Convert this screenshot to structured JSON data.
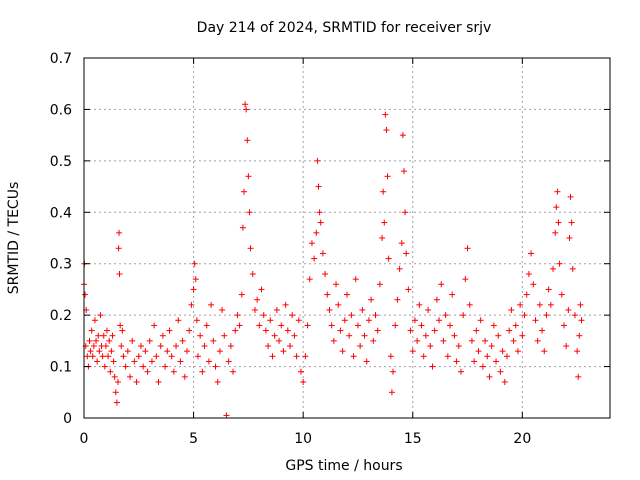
{
  "chart_data": {
    "type": "scatter",
    "title": "Day 214 of 2024, SRMTID for receiver srjv",
    "xlabel": "GPS time / hours",
    "ylabel": "SRMTID / TECUs",
    "xlim": [
      0,
      24
    ],
    "ylim": [
      0,
      0.7
    ],
    "xticks": [
      0,
      5,
      10,
      15,
      20
    ],
    "yticks": [
      0,
      0.1,
      0.2,
      0.3,
      0.4,
      0.5,
      0.6,
      0.7
    ],
    "xtick_labels": [
      "0",
      "5",
      "10",
      "15",
      "20"
    ],
    "ytick_labels": [
      "0",
      "0.1",
      "0.2",
      "0.3",
      "0.4",
      "0.5",
      "0.6",
      "0.7"
    ],
    "marker": "+",
    "marker_color": "#ff0000",
    "grid": true,
    "series": [
      {
        "name": "srjv",
        "points": [
          [
            0.0,
            0.26
          ],
          [
            0.02,
            0.3
          ],
          [
            0.05,
            0.24
          ],
          [
            0.08,
            0.14
          ],
          [
            0.1,
            0.21
          ],
          [
            0.15,
            0.12
          ],
          [
            0.2,
            0.1
          ],
          [
            0.25,
            0.15
          ],
          [
            0.3,
            0.13
          ],
          [
            0.35,
            0.17
          ],
          [
            0.4,
            0.12
          ],
          [
            0.45,
            0.14
          ],
          [
            0.5,
            0.19
          ],
          [
            0.55,
            0.15
          ],
          [
            0.6,
            0.11
          ],
          [
            0.65,
            0.16
          ],
          [
            0.7,
            0.13
          ],
          [
            0.75,
            0.2
          ],
          [
            0.8,
            0.14
          ],
          [
            0.85,
            0.12
          ],
          [
            0.9,
            0.16
          ],
          [
            0.95,
            0.1
          ],
          [
            1.0,
            0.14
          ],
          [
            1.05,
            0.17
          ],
          [
            1.1,
            0.12
          ],
          [
            1.15,
            0.15
          ],
          [
            1.2,
            0.09
          ],
          [
            1.25,
            0.13
          ],
          [
            1.3,
            0.16
          ],
          [
            1.35,
            0.11
          ],
          [
            1.4,
            0.08
          ],
          [
            1.45,
            0.05
          ],
          [
            1.5,
            0.03
          ],
          [
            1.55,
            0.07
          ],
          [
            1.58,
            0.33
          ],
          [
            1.6,
            0.36
          ],
          [
            1.62,
            0.28
          ],
          [
            1.65,
            0.18
          ],
          [
            1.7,
            0.14
          ],
          [
            1.75,
            0.17
          ],
          [
            1.8,
            0.12
          ],
          [
            1.9,
            0.1
          ],
          [
            2.0,
            0.13
          ],
          [
            2.1,
            0.08
          ],
          [
            2.2,
            0.15
          ],
          [
            2.3,
            0.11
          ],
          [
            2.4,
            0.07
          ],
          [
            2.5,
            0.12
          ],
          [
            2.6,
            0.14
          ],
          [
            2.7,
            0.1
          ],
          [
            2.8,
            0.13
          ],
          [
            2.9,
            0.09
          ],
          [
            3.0,
            0.15
          ],
          [
            3.1,
            0.11
          ],
          [
            3.2,
            0.18
          ],
          [
            3.3,
            0.12
          ],
          [
            3.4,
            0.07
          ],
          [
            3.5,
            0.14
          ],
          [
            3.6,
            0.16
          ],
          [
            3.7,
            0.1
          ],
          [
            3.8,
            0.13
          ],
          [
            3.9,
            0.17
          ],
          [
            4.0,
            0.12
          ],
          [
            4.1,
            0.09
          ],
          [
            4.2,
            0.14
          ],
          [
            4.3,
            0.19
          ],
          [
            4.4,
            0.11
          ],
          [
            4.5,
            0.15
          ],
          [
            4.6,
            0.08
          ],
          [
            4.7,
            0.13
          ],
          [
            4.8,
            0.17
          ],
          [
            4.9,
            0.22
          ],
          [
            5.0,
            0.25
          ],
          [
            5.05,
            0.3
          ],
          [
            5.1,
            0.27
          ],
          [
            5.15,
            0.19
          ],
          [
            5.2,
            0.12
          ],
          [
            5.3,
            0.16
          ],
          [
            5.4,
            0.09
          ],
          [
            5.5,
            0.14
          ],
          [
            5.6,
            0.18
          ],
          [
            5.7,
            0.11
          ],
          [
            5.8,
            0.22
          ],
          [
            5.9,
            0.15
          ],
          [
            6.0,
            0.1
          ],
          [
            6.1,
            0.07
          ],
          [
            6.2,
            0.13
          ],
          [
            6.3,
            0.21
          ],
          [
            6.4,
            0.16
          ],
          [
            6.5,
            0.005
          ],
          [
            6.6,
            0.11
          ],
          [
            6.7,
            0.14
          ],
          [
            6.8,
            0.09
          ],
          [
            6.9,
            0.17
          ],
          [
            7.0,
            0.2
          ],
          [
            7.1,
            0.18
          ],
          [
            7.2,
            0.24
          ],
          [
            7.25,
            0.37
          ],
          [
            7.3,
            0.44
          ],
          [
            7.35,
            0.61
          ],
          [
            7.4,
            0.6
          ],
          [
            7.45,
            0.54
          ],
          [
            7.5,
            0.47
          ],
          [
            7.55,
            0.4
          ],
          [
            7.6,
            0.33
          ],
          [
            7.7,
            0.28
          ],
          [
            7.8,
            0.21
          ],
          [
            7.9,
            0.23
          ],
          [
            8.0,
            0.18
          ],
          [
            8.1,
            0.25
          ],
          [
            8.2,
            0.2
          ],
          [
            8.3,
            0.17
          ],
          [
            8.4,
            0.14
          ],
          [
            8.5,
            0.19
          ],
          [
            8.6,
            0.12
          ],
          [
            8.7,
            0.16
          ],
          [
            8.8,
            0.21
          ],
          [
            8.9,
            0.15
          ],
          [
            9.0,
            0.18
          ],
          [
            9.1,
            0.13
          ],
          [
            9.2,
            0.22
          ],
          [
            9.3,
            0.17
          ],
          [
            9.4,
            0.14
          ],
          [
            9.5,
            0.2
          ],
          [
            9.6,
            0.16
          ],
          [
            9.7,
            0.12
          ],
          [
            9.8,
            0.19
          ],
          [
            9.9,
            0.09
          ],
          [
            10.0,
            0.07
          ],
          [
            10.1,
            0.12
          ],
          [
            10.2,
            0.18
          ],
          [
            10.3,
            0.27
          ],
          [
            10.4,
            0.34
          ],
          [
            10.5,
            0.31
          ],
          [
            10.6,
            0.36
          ],
          [
            10.65,
            0.5
          ],
          [
            10.7,
            0.45
          ],
          [
            10.75,
            0.4
          ],
          [
            10.8,
            0.38
          ],
          [
            10.9,
            0.32
          ],
          [
            11.0,
            0.28
          ],
          [
            11.1,
            0.24
          ],
          [
            11.2,
            0.21
          ],
          [
            11.3,
            0.18
          ],
          [
            11.4,
            0.15
          ],
          [
            11.5,
            0.26
          ],
          [
            11.6,
            0.22
          ],
          [
            11.7,
            0.17
          ],
          [
            11.8,
            0.13
          ],
          [
            11.9,
            0.19
          ],
          [
            12.0,
            0.24
          ],
          [
            12.1,
            0.16
          ],
          [
            12.2,
            0.2
          ],
          [
            12.3,
            0.12
          ],
          [
            12.4,
            0.27
          ],
          [
            12.5,
            0.18
          ],
          [
            12.6,
            0.14
          ],
          [
            12.7,
            0.21
          ],
          [
            12.8,
            0.16
          ],
          [
            12.9,
            0.11
          ],
          [
            13.0,
            0.19
          ],
          [
            13.1,
            0.23
          ],
          [
            13.2,
            0.15
          ],
          [
            13.3,
            0.2
          ],
          [
            13.4,
            0.17
          ],
          [
            13.5,
            0.26
          ],
          [
            13.6,
            0.35
          ],
          [
            13.65,
            0.44
          ],
          [
            13.7,
            0.38
          ],
          [
            13.75,
            0.59
          ],
          [
            13.8,
            0.56
          ],
          [
            13.85,
            0.47
          ],
          [
            13.9,
            0.31
          ],
          [
            14.0,
            0.12
          ],
          [
            14.05,
            0.05
          ],
          [
            14.1,
            0.09
          ],
          [
            14.2,
            0.18
          ],
          [
            14.3,
            0.23
          ],
          [
            14.4,
            0.29
          ],
          [
            14.5,
            0.34
          ],
          [
            14.55,
            0.55
          ],
          [
            14.6,
            0.48
          ],
          [
            14.65,
            0.4
          ],
          [
            14.7,
            0.32
          ],
          [
            14.8,
            0.25
          ],
          [
            14.9,
            0.17
          ],
          [
            15.0,
            0.13
          ],
          [
            15.1,
            0.19
          ],
          [
            15.2,
            0.15
          ],
          [
            15.3,
            0.22
          ],
          [
            15.4,
            0.18
          ],
          [
            15.5,
            0.12
          ],
          [
            15.6,
            0.16
          ],
          [
            15.7,
            0.21
          ],
          [
            15.8,
            0.14
          ],
          [
            15.9,
            0.1
          ],
          [
            16.0,
            0.17
          ],
          [
            16.1,
            0.23
          ],
          [
            16.2,
            0.19
          ],
          [
            16.3,
            0.26
          ],
          [
            16.4,
            0.15
          ],
          [
            16.5,
            0.2
          ],
          [
            16.6,
            0.12
          ],
          [
            16.7,
            0.18
          ],
          [
            16.8,
            0.24
          ],
          [
            16.9,
            0.16
          ],
          [
            17.0,
            0.11
          ],
          [
            17.1,
            0.14
          ],
          [
            17.2,
            0.09
          ],
          [
            17.3,
            0.2
          ],
          [
            17.4,
            0.27
          ],
          [
            17.5,
            0.33
          ],
          [
            17.6,
            0.22
          ],
          [
            17.7,
            0.15
          ],
          [
            17.8,
            0.11
          ],
          [
            17.9,
            0.17
          ],
          [
            18.0,
            0.13
          ],
          [
            18.1,
            0.19
          ],
          [
            18.2,
            0.1
          ],
          [
            18.3,
            0.15
          ],
          [
            18.4,
            0.12
          ],
          [
            18.5,
            0.08
          ],
          [
            18.6,
            0.14
          ],
          [
            18.7,
            0.18
          ],
          [
            18.8,
            0.11
          ],
          [
            18.9,
            0.16
          ],
          [
            19.0,
            0.09
          ],
          [
            19.1,
            0.13
          ],
          [
            19.2,
            0.07
          ],
          [
            19.3,
            0.12
          ],
          [
            19.4,
            0.17
          ],
          [
            19.5,
            0.21
          ],
          [
            19.6,
            0.15
          ],
          [
            19.7,
            0.18
          ],
          [
            19.8,
            0.13
          ],
          [
            19.9,
            0.22
          ],
          [
            20.0,
            0.16
          ],
          [
            20.1,
            0.2
          ],
          [
            20.2,
            0.24
          ],
          [
            20.3,
            0.28
          ],
          [
            20.4,
            0.32
          ],
          [
            20.5,
            0.26
          ],
          [
            20.6,
            0.19
          ],
          [
            20.7,
            0.15
          ],
          [
            20.8,
            0.22
          ],
          [
            20.9,
            0.17
          ],
          [
            21.0,
            0.13
          ],
          [
            21.1,
            0.2
          ],
          [
            21.2,
            0.25
          ],
          [
            21.3,
            0.22
          ],
          [
            21.4,
            0.29
          ],
          [
            21.5,
            0.36
          ],
          [
            21.55,
            0.41
          ],
          [
            21.6,
            0.44
          ],
          [
            21.65,
            0.38
          ],
          [
            21.7,
            0.3
          ],
          [
            21.8,
            0.24
          ],
          [
            21.9,
            0.18
          ],
          [
            22.0,
            0.14
          ],
          [
            22.1,
            0.21
          ],
          [
            22.15,
            0.35
          ],
          [
            22.2,
            0.43
          ],
          [
            22.25,
            0.38
          ],
          [
            22.3,
            0.29
          ],
          [
            22.4,
            0.2
          ],
          [
            22.5,
            0.13
          ],
          [
            22.55,
            0.08
          ],
          [
            22.6,
            0.16
          ],
          [
            22.65,
            0.22
          ],
          [
            22.7,
            0.19
          ]
        ]
      }
    ]
  }
}
